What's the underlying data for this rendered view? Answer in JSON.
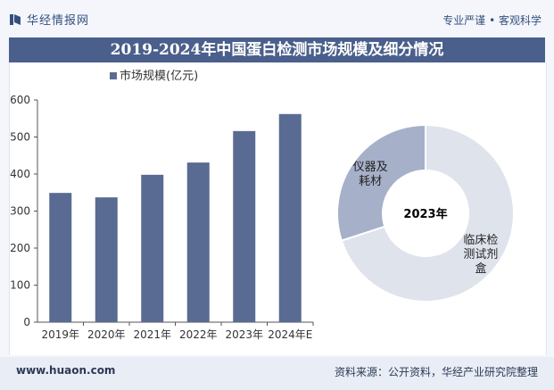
{
  "header": {
    "brand_name": "华经情报网",
    "slogan": "专业严谨 • 客观科学"
  },
  "title": "2019-2024年中国蛋白检测市场规模及细分情况",
  "footer": {
    "url": "www.huaon.com",
    "source": "资料来源：公开资料，华经产业研究院整理"
  },
  "colors": {
    "bar": "#5a6b93",
    "title_band": "#4a5f8b",
    "donut_a": "#a6b0c9",
    "donut_b": "#dfe3ec"
  },
  "chart_data": [
    {
      "type": "bar",
      "title": "",
      "legend": "市场规模(亿元)",
      "categories": [
        "2019年",
        "2020年",
        "2021年",
        "2022年",
        "2023年",
        "2024年E"
      ],
      "values": [
        349,
        337,
        398,
        431,
        516,
        562
      ],
      "ylim": [
        0,
        600
      ],
      "yticks": [
        0,
        100,
        200,
        300,
        400,
        500,
        600
      ],
      "xlabel": "",
      "ylabel": ""
    },
    {
      "type": "pie",
      "center_label": "2023年",
      "slices": [
        {
          "label_lines": [
            "临床检",
            "测试剂",
            "盒"
          ],
          "value": 70
        },
        {
          "label_lines": [
            "仪器及",
            "耗材"
          ],
          "value": 30
        }
      ]
    }
  ]
}
